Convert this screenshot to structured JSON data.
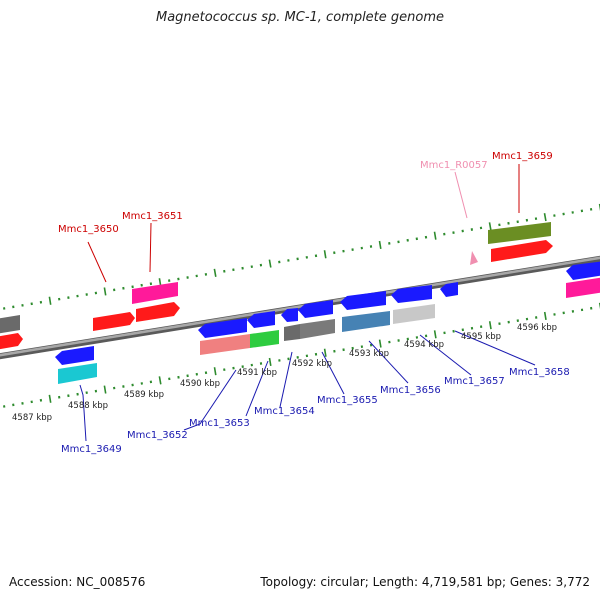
{
  "title": "Magnetococcus sp. MC-1, complete genome",
  "accession": "Accession: NC_008576",
  "summary": "Topology: circular; Length: 4,719,581 bp; Genes: 3,772",
  "colors": {
    "backbone": "#8a8a8a",
    "tick": "#2e8b2e",
    "top_label": "#cc0000",
    "rna_label": "#f08fb0",
    "bottom_label": "#1a1ab0",
    "connector_red": "#cc0000",
    "connector_pink": "#f08fb0",
    "connector_blue": "#1a1ab0"
  },
  "kbp_labels": [
    "4587 kbp",
    "4588 kbp",
    "4589 kbp",
    "4590 kbp",
    "4591 kbp",
    "4592 kbp",
    "4593 kbp",
    "4594 kbp",
    "4595 kbp",
    "4596 kbp"
  ],
  "top_labels": [
    "Mmc1_3650",
    "Mmc1_3651",
    "Mmc1_R0057",
    "Mmc1_3659"
  ],
  "bottom_labels": [
    "Mmc1_3649",
    "Mmc1_3652",
    "Mmc1_3653",
    "Mmc1_3654",
    "Mmc1_3655",
    "Mmc1_3656",
    "Mmc1_3657",
    "Mmc1_3658"
  ]
}
